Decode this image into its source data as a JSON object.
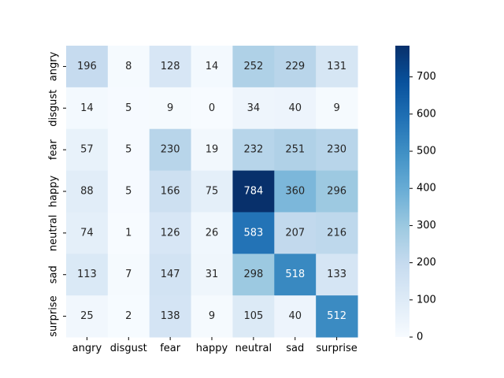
{
  "chart_data": {
    "type": "heatmap",
    "title": "",
    "xlabel": "",
    "ylabel": "",
    "x_categories": [
      "angry",
      "disgust",
      "fear",
      "happy",
      "neutral",
      "sad",
      "surprise"
    ],
    "y_categories": [
      "angry",
      "disgust",
      "fear",
      "happy",
      "neutral",
      "sad",
      "surprise"
    ],
    "values": [
      [
        196,
        8,
        128,
        14,
        252,
        229,
        131
      ],
      [
        14,
        5,
        9,
        0,
        34,
        40,
        9
      ],
      [
        57,
        5,
        230,
        19,
        232,
        251,
        230
      ],
      [
        88,
        5,
        166,
        75,
        784,
        360,
        296
      ],
      [
        74,
        1,
        126,
        26,
        583,
        207,
        216
      ],
      [
        113,
        7,
        147,
        31,
        298,
        518,
        133
      ],
      [
        25,
        2,
        138,
        9,
        105,
        40,
        512
      ]
    ],
    "colormap": "Blues",
    "color_range": [
      0,
      784
    ],
    "colorbar": {
      "ticks": [
        0,
        100,
        200,
        300,
        400,
        500,
        600,
        700
      ]
    }
  }
}
